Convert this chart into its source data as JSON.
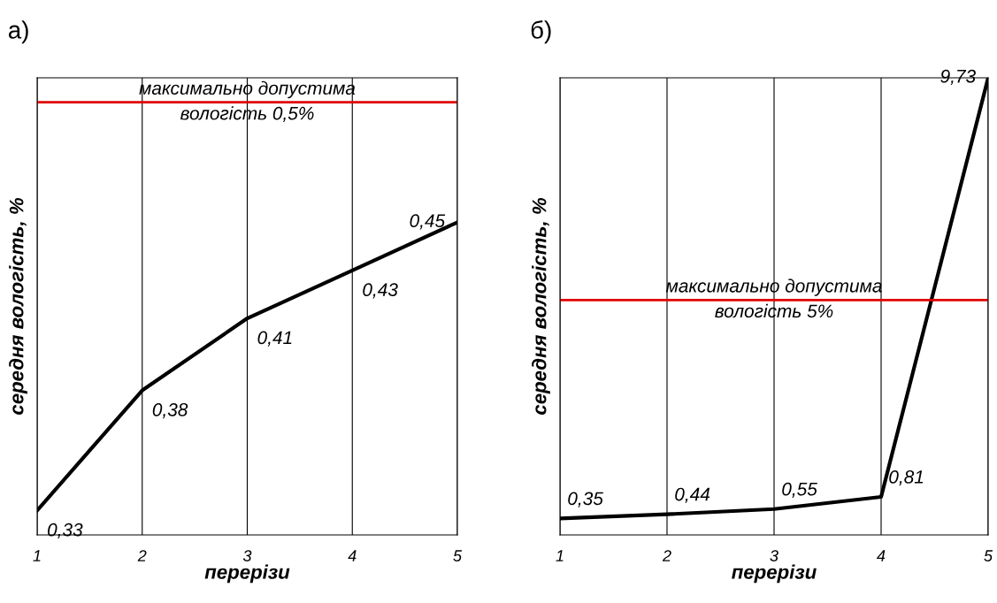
{
  "chart_data": [
    {
      "type": "line",
      "title": "а)",
      "xlabel": "перерізи",
      "ylabel": "середня вологість, %",
      "x": [
        1,
        2,
        3,
        4,
        5
      ],
      "series": [
        {
          "color": "#000000",
          "values": [
            0.33,
            0.38,
            0.41,
            0.43,
            0.45
          ],
          "value_labels": [
            "0,33",
            "0,38",
            "0,41",
            "0,43",
            "0,45"
          ]
        }
      ],
      "xlim": [
        1,
        5
      ],
      "xticks": [
        1,
        2,
        3,
        4,
        5
      ],
      "tick_labels": "x",
      "grid": "x",
      "ref_lines": [
        {
          "axis": "y",
          "value": 0.5,
          "label": "максимально допустима\nвологість 0,5%",
          "color": "#e00000"
        }
      ]
    },
    {
      "type": "line",
      "title": "б)",
      "xlabel": "перерізи",
      "ylabel": "середня вологість, %",
      "x": [
        1,
        2,
        3,
        4,
        5
      ],
      "series": [
        {
          "color": "#000000",
          "values": [
            0.35,
            0.44,
            0.55,
            0.81,
            9.73
          ],
          "value_labels": [
            "0,35",
            "0,44",
            "0,55",
            "0,81",
            "9,73"
          ]
        }
      ],
      "xlim": [
        1,
        5
      ],
      "xticks": [
        1,
        2,
        3,
        4,
        5
      ],
      "ylim": [
        0,
        9.73
      ],
      "tick_labels": "x",
      "grid": "x",
      "ref_lines": [
        {
          "axis": "y",
          "value": 5,
          "label": "максимально допустима\nвологість 5%",
          "color": "#e00000"
        }
      ]
    }
  ]
}
